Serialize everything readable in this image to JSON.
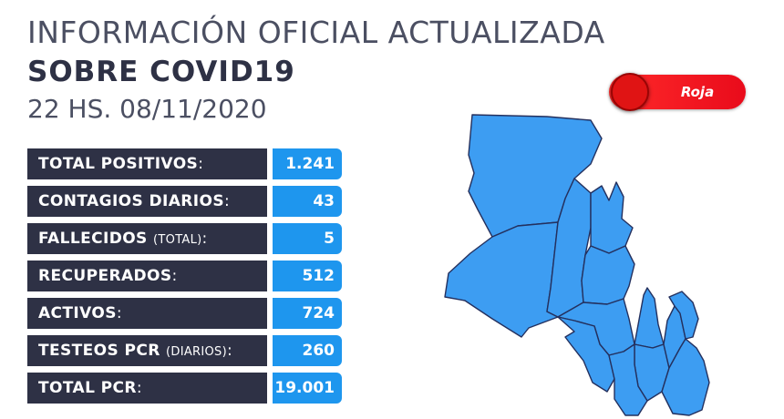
{
  "header": {
    "line1": "INFORMACIÓN OFICIAL ACTUALIZADA",
    "line2": "SOBRE COVID19",
    "line3": "22 HS. 08/11/2020"
  },
  "status": {
    "label": "Roja",
    "color": "#e90b1b"
  },
  "stats": [
    {
      "label": "TOTAL POSITIVOS",
      "suffix": "",
      "value": "1.241"
    },
    {
      "label": "CONTAGIOS DIARIOS",
      "suffix": "",
      "value": "43"
    },
    {
      "label": "FALLECIDOS",
      "suffix": "(TOTAL)",
      "value": "5"
    },
    {
      "label": "RECUPERADOS",
      "suffix": "",
      "value": "512"
    },
    {
      "label": "ACTIVOS",
      "suffix": "",
      "value": "724"
    },
    {
      "label": "TESTEOS PCR",
      "suffix": "(DIARIOS)",
      "value": "260"
    },
    {
      "label": "TOTAL PCR",
      "suffix": "",
      "value": "19.001"
    }
  ],
  "colors": {
    "navy": "#2e3145",
    "blue": "#1e96ee",
    "map_fill": "#3d9df2",
    "map_stroke": "#24305e"
  }
}
